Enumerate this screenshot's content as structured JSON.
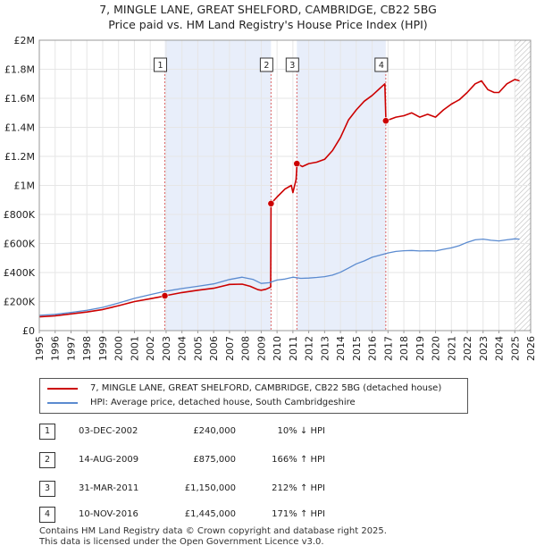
{
  "title_line1": "7, MINGLE LANE, GREAT SHELFORD, CAMBRIDGE, CB22 5BG",
  "title_line2": "Price paid vs. HM Land Registry's House Price Index (HPI)",
  "chart_data": {
    "type": "line",
    "title": "7, MINGLE LANE, GREAT SHELFORD, CAMBRIDGE, CB22 5BG",
    "subtitle": "Price paid vs. HM Land Registry's House Price Index (HPI)",
    "xlabel": "",
    "ylabel": "",
    "xlim": [
      1995,
      2026
    ],
    "ylim": [
      0,
      2000000
    ],
    "x_ticks": [
      "1995",
      "1996",
      "1997",
      "1998",
      "1999",
      "2000",
      "2001",
      "2002",
      "2003",
      "2004",
      "2005",
      "2006",
      "2007",
      "2008",
      "2009",
      "2010",
      "2011",
      "2012",
      "2013",
      "2014",
      "2015",
      "2016",
      "2017",
      "2018",
      "2019",
      "2020",
      "2021",
      "2022",
      "2023",
      "2024",
      "2025",
      "2026"
    ],
    "y_ticks": [
      {
        "value": 0,
        "label": "£0"
      },
      {
        "value": 200000,
        "label": "£200K"
      },
      {
        "value": 400000,
        "label": "£400K"
      },
      {
        "value": 600000,
        "label": "£600K"
      },
      {
        "value": 800000,
        "label": "£800K"
      },
      {
        "value": 1000000,
        "label": "£1M"
      },
      {
        "value": 1200000,
        "label": "£1.2M"
      },
      {
        "value": 1400000,
        "label": "£1.4M"
      },
      {
        "value": 1600000,
        "label": "£1.6M"
      },
      {
        "value": 1800000,
        "label": "£1.8M"
      },
      {
        "value": 2000000,
        "label": "£2M"
      }
    ],
    "grid": true,
    "legend_position": "below",
    "shaded_ranges": [
      [
        2002.92,
        2009.62
      ],
      [
        2011.25,
        2016.86
      ]
    ],
    "hatched_from": 2025.0,
    "series": [
      {
        "name": "7, MINGLE LANE, GREAT SHELFORD, CAMBRIDGE, CB22 5BG (detached house)",
        "color": "#cc0000",
        "x": [
          1995.0,
          1996.0,
          1997.0,
          1998.0,
          1999.0,
          2000.0,
          2001.0,
          2002.0,
          2002.9,
          2002.93,
          2004.0,
          2005.0,
          2006.0,
          2007.0,
          2007.8,
          2008.3,
          2008.8,
          2009.0,
          2009.3,
          2009.6,
          2009.62,
          2010.0,
          2010.5,
          2010.9,
          2011.0,
          2011.2,
          2011.26,
          2011.6,
          2012.0,
          2012.5,
          2013.0,
          2013.5,
          2014.0,
          2014.5,
          2015.0,
          2015.5,
          2016.0,
          2016.5,
          2016.8,
          2016.87,
          2017.5,
          2018.0,
          2018.5,
          2019.0,
          2019.5,
          2020.0,
          2020.5,
          2021.0,
          2021.5,
          2022.0,
          2022.5,
          2022.9,
          2023.3,
          2023.7,
          2024.0,
          2024.5,
          2025.0,
          2025.3
        ],
        "values": [
          95000,
          102000,
          115000,
          128000,
          145000,
          172000,
          200000,
          220000,
          238000,
          240000,
          262000,
          278000,
          292000,
          318000,
          320000,
          305000,
          282000,
          278000,
          285000,
          300000,
          875000,
          920000,
          975000,
          1000000,
          950000,
          1040000,
          1150000,
          1130000,
          1150000,
          1160000,
          1180000,
          1240000,
          1330000,
          1450000,
          1520000,
          1580000,
          1620000,
          1670000,
          1700000,
          1445000,
          1470000,
          1480000,
          1500000,
          1470000,
          1490000,
          1470000,
          1520000,
          1560000,
          1590000,
          1640000,
          1700000,
          1720000,
          1660000,
          1640000,
          1640000,
          1700000,
          1730000,
          1720000
        ]
      },
      {
        "name": "HPI: Average price, detached house, South Cambridgeshire",
        "color": "#5b8bd0",
        "x": [
          1995.0,
          1996.0,
          1997.0,
          1998.0,
          1999.0,
          2000.0,
          2001.0,
          2002.0,
          2003.0,
          2004.0,
          2005.0,
          2006.0,
          2007.0,
          2007.8,
          2008.5,
          2009.0,
          2009.5,
          2010.0,
          2010.5,
          2011.0,
          2011.5,
          2012.0,
          2012.5,
          2013.0,
          2013.5,
          2014.0,
          2014.5,
          2015.0,
          2015.5,
          2016.0,
          2016.5,
          2017.0,
          2017.5,
          2018.0,
          2018.5,
          2019.0,
          2019.5,
          2020.0,
          2020.5,
          2021.0,
          2021.5,
          2022.0,
          2022.5,
          2023.0,
          2023.5,
          2024.0,
          2024.5,
          2025.0,
          2025.3
        ],
        "values": [
          105000,
          112000,
          125000,
          140000,
          160000,
          190000,
          222000,
          248000,
          272000,
          290000,
          305000,
          322000,
          352000,
          368000,
          352000,
          325000,
          330000,
          348000,
          355000,
          368000,
          360000,
          362000,
          366000,
          372000,
          382000,
          402000,
          430000,
          460000,
          480000,
          505000,
          520000,
          535000,
          545000,
          550000,
          552000,
          548000,
          550000,
          548000,
          560000,
          570000,
          585000,
          608000,
          625000,
          630000,
          622000,
          618000,
          625000,
          632000,
          630000
        ]
      }
    ],
    "sales": [
      {
        "label": "1",
        "x": 2002.92,
        "value": 240000
      },
      {
        "label": "2",
        "x": 2009.62,
        "value": 875000
      },
      {
        "label": "3",
        "x": 2011.25,
        "value": 1150000
      },
      {
        "label": "4",
        "x": 2016.86,
        "value": 1445000
      }
    ]
  },
  "legend": [
    {
      "label": "7, MINGLE LANE, GREAT SHELFORD, CAMBRIDGE, CB22 5BG (detached house)",
      "color": "#cc0000"
    },
    {
      "label": "HPI: Average price, detached house, South Cambridgeshire",
      "color": "#5b8bd0"
    }
  ],
  "sales_table": [
    {
      "num": "1",
      "date": "03-DEC-2002",
      "price": "£240,000",
      "hpi": "10% ↓ HPI"
    },
    {
      "num": "2",
      "date": "14-AUG-2009",
      "price": "£875,000",
      "hpi": "166% ↑ HPI"
    },
    {
      "num": "3",
      "date": "31-MAR-2011",
      "price": "£1,150,000",
      "hpi": "212% ↑ HPI"
    },
    {
      "num": "4",
      "date": "10-NOV-2016",
      "price": "£1,445,000",
      "hpi": "171% ↑ HPI"
    }
  ],
  "footer_line1": "Contains HM Land Registry data © Crown copyright and database right 2025.",
  "footer_line2": "This data is licensed under the Open Government Licence v3.0."
}
